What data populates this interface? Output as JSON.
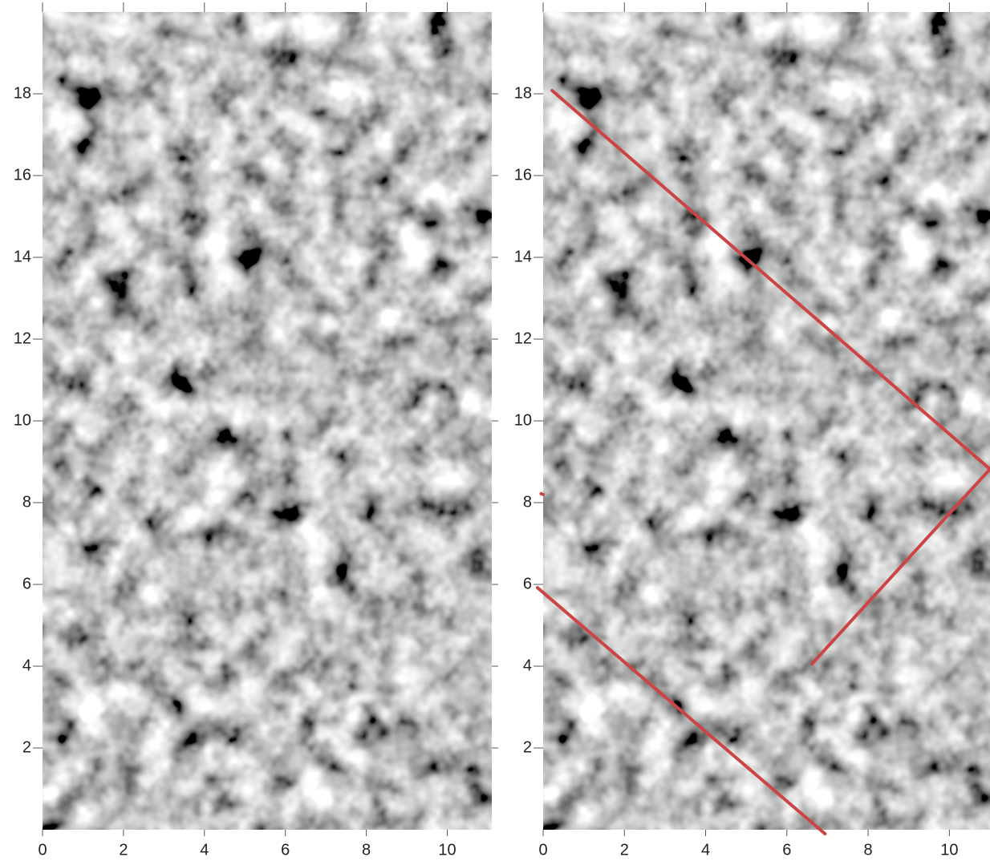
{
  "chart_data": [
    {
      "type": "image",
      "xlim": [
        0,
        11.1
      ],
      "ylim": [
        0,
        20
      ],
      "xticks": [
        0,
        2,
        4,
        6,
        8,
        10
      ],
      "yticks": [
        2,
        4,
        6,
        8,
        10,
        12,
        14,
        16,
        18
      ]
    },
    {
      "type": "image",
      "xlim": [
        0,
        11
      ],
      "ylim": [
        0,
        20
      ],
      "xticks": [
        0,
        2,
        4,
        6,
        8,
        10
      ],
      "yticks": [
        2,
        4,
        6,
        8,
        10,
        12,
        14,
        16,
        18
      ],
      "series": [
        {
          "color": "#cc4444",
          "x": [
            0.22,
            11.0,
            6.62
          ],
          "y": [
            18.08,
            8.82,
            4.06
          ]
        },
        {
          "color": "#cc4444",
          "x": [
            -0.14,
            6.94
          ],
          "y": [
            5.92,
            -0.1
          ]
        },
        {
          "color": "#cc4444",
          "x": [
            -0.05,
            0.0
          ],
          "y": [
            8.22,
            8.2
          ]
        }
      ]
    }
  ]
}
